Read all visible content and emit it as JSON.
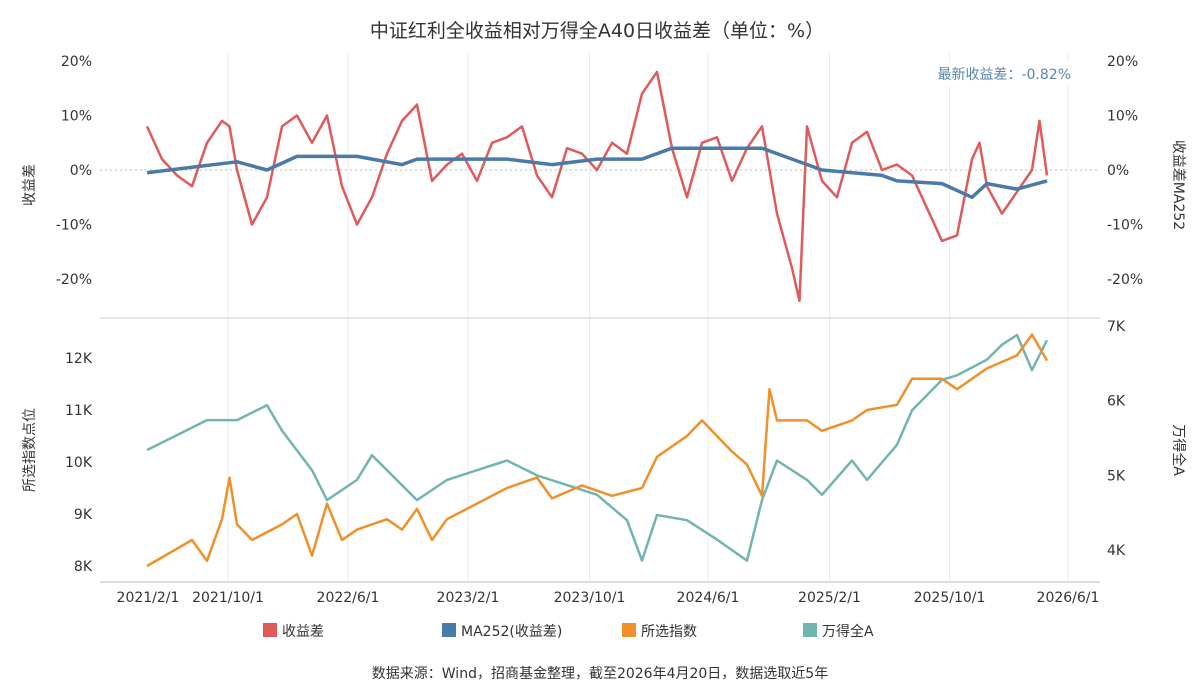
{
  "chart_data": {
    "title": "中证红利全收益相对万得全A40日收益差（单位：%）",
    "annotation": "最新收益差：-0.82%",
    "source": "数据来源：Wind，招商基金整理，截至2026年4月20日，数据选取近5年",
    "x_unit": "months since 2021/4/20",
    "x_ticks": [
      {
        "label": "2021/2/1",
        "m": 0
      },
      {
        "label": "2021/10/1",
        "m": 5.4
      },
      {
        "label": "2022/6/1",
        "m": 13.4
      },
      {
        "label": "2023/2/1",
        "m": 21.4
      },
      {
        "label": "2023/10/1",
        "m": 29.5
      },
      {
        "label": "2024/6/1",
        "m": 37.4
      },
      {
        "label": "2025/2/1",
        "m": 45.5
      },
      {
        "label": "2025/10/1",
        "m": 53.5
      },
      {
        "label": "2026/6/1",
        "m": 61.4
      }
    ],
    "top": {
      "type": "line",
      "ylabel_left": "收益差",
      "ylabel_right": "收益差MA252",
      "ylim": [
        -25,
        20
      ],
      "y_ticks": [
        {
          "label": "20%",
          "v": 20
        },
        {
          "label": "10%",
          "v": 10
        },
        {
          "label": "0%",
          "v": 0
        },
        {
          "label": "-10%",
          "v": -10
        },
        {
          "label": "-20%",
          "v": -20
        }
      ],
      "series": [
        {
          "name": "收益差",
          "color": "#e05a5a",
          "points": [
            [
              0,
              8
            ],
            [
              1,
              2
            ],
            [
              2,
              -1
            ],
            [
              3,
              -3
            ],
            [
              4,
              5
            ],
            [
              5,
              9
            ],
            [
              5.5,
              8
            ],
            [
              6,
              0
            ],
            [
              7,
              -10
            ],
            [
              8,
              -5
            ],
            [
              9,
              8
            ],
            [
              10,
              10
            ],
            [
              11,
              5
            ],
            [
              12,
              10
            ],
            [
              13,
              -3
            ],
            [
              14,
              -10
            ],
            [
              15,
              -5
            ],
            [
              16,
              3
            ],
            [
              17,
              9
            ],
            [
              18,
              12
            ],
            [
              19,
              -2
            ],
            [
              20,
              1
            ],
            [
              21,
              3
            ],
            [
              22,
              -2
            ],
            [
              23,
              5
            ],
            [
              24,
              6
            ],
            [
              25,
              8
            ],
            [
              26,
              -1
            ],
            [
              27,
              -5
            ],
            [
              28,
              4
            ],
            [
              29,
              3
            ],
            [
              30,
              0
            ],
            [
              31,
              5
            ],
            [
              32,
              3
            ],
            [
              33,
              14
            ],
            [
              34,
              18
            ],
            [
              35,
              4
            ],
            [
              36,
              -5
            ],
            [
              37,
              5
            ],
            [
              38,
              6
            ],
            [
              39,
              -2
            ],
            [
              40,
              4
            ],
            [
              41,
              8
            ],
            [
              42,
              -8
            ],
            [
              43,
              -18
            ],
            [
              43.5,
              -24
            ],
            [
              44,
              8
            ],
            [
              45,
              -2
            ],
            [
              46,
              -5
            ],
            [
              47,
              5
            ],
            [
              48,
              7
            ],
            [
              49,
              0
            ],
            [
              50,
              1
            ],
            [
              51,
              -1
            ],
            [
              52,
              -7
            ],
            [
              53,
              -13
            ],
            [
              54,
              -12
            ],
            [
              55,
              2
            ],
            [
              55.5,
              5
            ],
            [
              56,
              -3
            ],
            [
              57,
              -8
            ],
            [
              58,
              -4
            ],
            [
              59,
              0
            ],
            [
              59.5,
              9
            ],
            [
              60,
              -1
            ]
          ]
        },
        {
          "name": "MA252(收益差)",
          "color": "#4a7aa8",
          "points": [
            [
              0,
              -0.5
            ],
            [
              3,
              0.5
            ],
            [
              6,
              1.5
            ],
            [
              8,
              0
            ],
            [
              10,
              2.5
            ],
            [
              14,
              2.5
            ],
            [
              17,
              1
            ],
            [
              18,
              2
            ],
            [
              24,
              2
            ],
            [
              27,
              1
            ],
            [
              30,
              2
            ],
            [
              33,
              2
            ],
            [
              35,
              4
            ],
            [
              37,
              4
            ],
            [
              41,
              4
            ],
            [
              43,
              2
            ],
            [
              45,
              0
            ],
            [
              49,
              -1
            ],
            [
              50,
              -2
            ],
            [
              53,
              -2.5
            ],
            [
              55,
              -5
            ],
            [
              56,
              -2.5
            ],
            [
              58,
              -3.5
            ],
            [
              60,
              -2
            ]
          ]
        }
      ]
    },
    "bottom": {
      "type": "line",
      "ylabel_left": "所选指数点位",
      "ylabel_right": "万得全A",
      "ylim_left": [
        7.85,
        12.75
      ],
      "ylim_right": [
        3.67,
        7.0
      ],
      "y_ticks_left": [
        {
          "label": "12K",
          "v": 12
        },
        {
          "label": "11K",
          "v": 11
        },
        {
          "label": "10K",
          "v": 10
        },
        {
          "label": "9K",
          "v": 9
        },
        {
          "label": "8K",
          "v": 8
        }
      ],
      "y_ticks_right": [
        {
          "label": "7K",
          "v": 7
        },
        {
          "label": "6K",
          "v": 6
        },
        {
          "label": "5K",
          "v": 5
        },
        {
          "label": "4K",
          "v": 4
        }
      ],
      "series": [
        {
          "name": "所选指数",
          "color": "#f0902a",
          "axis": "left",
          "points": [
            [
              0,
              8
            ],
            [
              3,
              8.5
            ],
            [
              4,
              8.1
            ],
            [
              5,
              8.9
            ],
            [
              5.5,
              9.7
            ],
            [
              6,
              8.8
            ],
            [
              7,
              8.5
            ],
            [
              9,
              8.8
            ],
            [
              10,
              9
            ],
            [
              11,
              8.2
            ],
            [
              12,
              9.2
            ],
            [
              13,
              8.5
            ],
            [
              14,
              8.7
            ],
            [
              16,
              8.9
            ],
            [
              17,
              8.7
            ],
            [
              18,
              9.1
            ],
            [
              19,
              8.5
            ],
            [
              20,
              8.9
            ],
            [
              22,
              9.2
            ],
            [
              24,
              9.5
            ],
            [
              26,
              9.7
            ],
            [
              27,
              9.3
            ],
            [
              29,
              9.55
            ],
            [
              31,
              9.35
            ],
            [
              33,
              9.5
            ],
            [
              34,
              10.1
            ],
            [
              36,
              10.5
            ],
            [
              37,
              10.8
            ],
            [
              39,
              10.2
            ],
            [
              40,
              9.95
            ],
            [
              41,
              9.35
            ],
            [
              41.5,
              11.4
            ],
            [
              42,
              10.8
            ],
            [
              44,
              10.8
            ],
            [
              45,
              10.6
            ],
            [
              47,
              10.8
            ],
            [
              48,
              11
            ],
            [
              50,
              11.1
            ],
            [
              51,
              11.6
            ],
            [
              53,
              11.6
            ],
            [
              54,
              11.4
            ],
            [
              56,
              11.8
            ],
            [
              58,
              12.05
            ],
            [
              59,
              12.45
            ],
            [
              60,
              11.95
            ]
          ]
        },
        {
          "name": "万得全A",
          "color": "#72b5b0",
          "axis": "right",
          "points": [
            [
              0,
              5.34
            ],
            [
              2,
              5.54
            ],
            [
              4,
              5.74
            ],
            [
              6,
              5.74
            ],
            [
              8,
              5.94
            ],
            [
              9,
              5.6
            ],
            [
              11,
              5.07
            ],
            [
              12,
              4.67
            ],
            [
              14,
              4.94
            ],
            [
              15,
              5.27
            ],
            [
              16,
              5.07
            ],
            [
              18,
              4.67
            ],
            [
              20,
              4.94
            ],
            [
              22,
              5.07
            ],
            [
              24,
              5.2
            ],
            [
              26,
              5
            ],
            [
              28,
              4.87
            ],
            [
              30,
              4.74
            ],
            [
              32,
              4.4
            ],
            [
              33,
              3.86
            ],
            [
              34,
              4.47
            ],
            [
              36,
              4.4
            ],
            [
              38,
              4.14
            ],
            [
              40,
              3.86
            ],
            [
              41,
              4.67
            ],
            [
              42,
              5.2
            ],
            [
              44,
              4.94
            ],
            [
              45,
              4.74
            ],
            [
              47,
              5.2
            ],
            [
              48,
              4.94
            ],
            [
              50,
              5.41
            ],
            [
              51,
              5.87
            ],
            [
              53,
              6.28
            ],
            [
              54,
              6.34
            ],
            [
              56,
              6.55
            ],
            [
              57,
              6.75
            ],
            [
              58,
              6.88
            ],
            [
              59,
              6.41
            ],
            [
              60,
              6.81
            ]
          ]
        }
      ]
    }
  }
}
